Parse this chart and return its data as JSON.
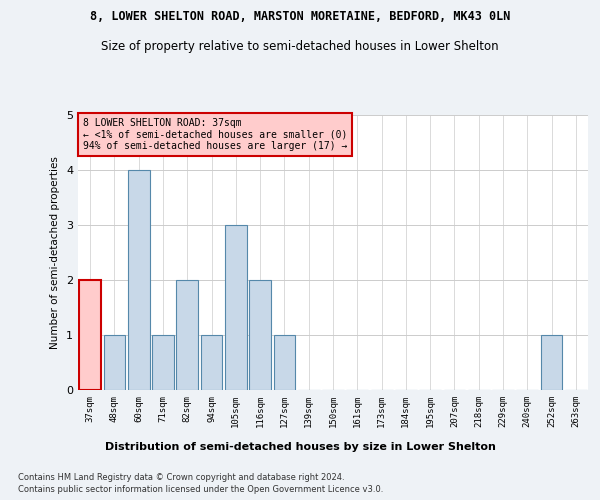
{
  "title": "8, LOWER SHELTON ROAD, MARSTON MORETAINE, BEDFORD, MK43 0LN",
  "subtitle": "Size of property relative to semi-detached houses in Lower Shelton",
  "xlabel_bottom": "Distribution of semi-detached houses by size in Lower Shelton",
  "ylabel": "Number of semi-detached properties",
  "categories": [
    "37sqm",
    "48sqm",
    "60sqm",
    "71sqm",
    "82sqm",
    "94sqm",
    "105sqm",
    "116sqm",
    "127sqm",
    "139sqm",
    "150sqm",
    "161sqm",
    "173sqm",
    "184sqm",
    "195sqm",
    "207sqm",
    "218sqm",
    "229sqm",
    "240sqm",
    "252sqm",
    "263sqm"
  ],
  "values": [
    2,
    1,
    4,
    1,
    2,
    1,
    3,
    2,
    1,
    0,
    0,
    0,
    0,
    0,
    0,
    0,
    0,
    0,
    0,
    1,
    0
  ],
  "bar_color_normal": "#c8d8e8",
  "bar_color_highlight": "#ffcccc",
  "bar_edge_color": "#5588aa",
  "highlight_index": 0,
  "highlight_edge_color": "#cc0000",
  "annotation_text": "8 LOWER SHELTON ROAD: 37sqm\n← <1% of semi-detached houses are smaller (0)\n94% of semi-detached houses are larger (17) →",
  "annotation_box_color": "#ffcccc",
  "annotation_edge_color": "#cc0000",
  "ylim": [
    0,
    5
  ],
  "yticks": [
    0,
    1,
    2,
    3,
    4,
    5
  ],
  "footer1": "Contains HM Land Registry data © Crown copyright and database right 2024.",
  "footer2": "Contains public sector information licensed under the Open Government Licence v3.0.",
  "bg_color": "#eef2f6",
  "plot_bg_color": "#ffffff",
  "grid_color": "#cccccc"
}
